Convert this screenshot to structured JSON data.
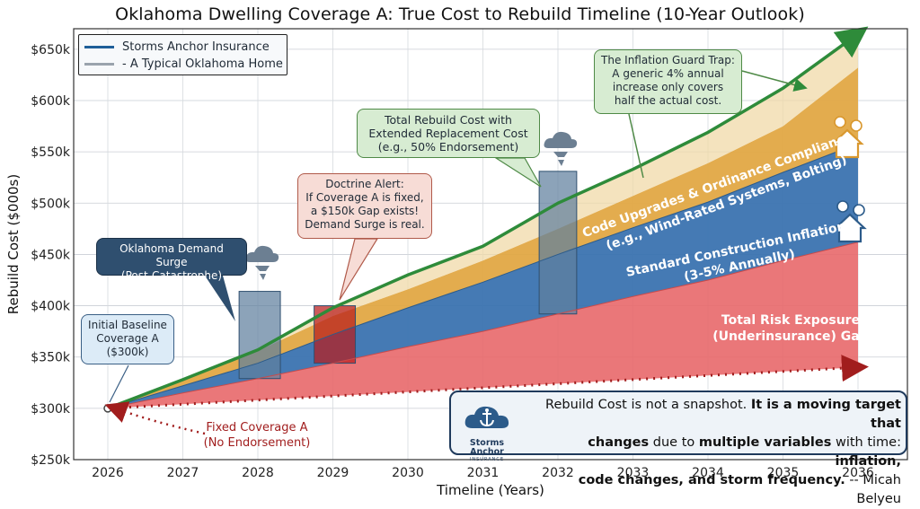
{
  "chart_data": {
    "type": "area",
    "title": "Oklahoma Dwelling Coverage A: True Cost to Rebuild Timeline (10-Year Outlook)",
    "xlabel": "Timeline (Years)",
    "ylabel": "Rebuild Cost ($000s)",
    "x": [
      2026,
      2027,
      2028,
      2029,
      2030,
      2031,
      2032,
      2033,
      2034,
      2035,
      2036
    ],
    "ylim": [
      250,
      670
    ],
    "y_ticks": [
      250,
      300,
      350,
      400,
      450,
      500,
      550,
      600,
      650
    ],
    "y_tick_labels": [
      "$250k",
      "$300k",
      "$350k",
      "$400k",
      "$450k",
      "$500k",
      "$550k",
      "$600k",
      "$650k"
    ],
    "x_tick_labels": [
      "2026",
      "2027",
      "2028",
      "2029",
      "2030",
      "2031",
      "2032",
      "2033",
      "2034",
      "2035",
      "2036"
    ],
    "grid": true,
    "legend_position": "top-left",
    "legend": [
      {
        "label": "Storms Anchor Insurance",
        "color": "#1f5f99"
      },
      {
        "label": "- A Typical Oklahoma Home",
        "color": "#9aa3ad"
      }
    ],
    "series": [
      {
        "name": "Fixed Coverage A",
        "color": "#a11d1d",
        "values": [
          300,
          304,
          308,
          312,
          316,
          320,
          324,
          328,
          332,
          336,
          340
        ]
      },
      {
        "name": "Total Risk Exposure (Underinsurance) Gap",
        "color": "#e8686a",
        "values": [
          300,
          315,
          329,
          344,
          360,
          375,
          392,
          409,
          425,
          444,
          462
        ]
      },
      {
        "name": "Standard Construction Inflation",
        "color": "#3b73b0",
        "values": [
          300,
          322,
          344,
          372,
          398,
          423,
          450,
          476,
          501,
          530,
          558
        ]
      },
      {
        "name": "Code Upgrades & Ordinance Compliance",
        "color": "#e2a845",
        "values": [
          300,
          327,
          356,
          390,
          416,
          444,
          475,
          507,
          539,
          575,
          632
        ]
      },
      {
        "name": "Total Rebuild Cost with Extended Replacement Cost",
        "color": "#2e8b3a",
        "values": [
          300,
          328,
          357,
          398,
          430,
          458,
          500,
          533,
          569,
          612,
          665
        ]
      }
    ],
    "surge_bars": [
      {
        "x_start": 2027.75,
        "x_end": 2028.3,
        "top": 414
      },
      {
        "x_start": 2028.75,
        "x_end": 2029.3,
        "top": 400
      },
      {
        "x_start": 2031.75,
        "x_end": 2032.25,
        "top": 531
      }
    ],
    "annotations": {
      "baseline": "Initial Baseline\nCoverage A\n($300k)",
      "surge": "Oklahoma Demand Surge\n(Post-Catastrophe)",
      "doctrine": "Doctrine Alert:\nIf Coverage A is fixed,\na $150k Gap exists!\nDemand Surge is real.",
      "extended": "Total Rebuild Cost with\nExtended Replacement Cost\n(e.g., 50% Endorsement)",
      "inflation_guard": "The Inflation Guard Trap:\nA generic 4% annual\nincrease only covers\nhalf the actual cost.",
      "fixed": "Fixed Coverage A\n(No Endorsement)",
      "code_band_1": "Code Upgrades & Ordinance Compliance",
      "code_band_2": "(e.g., Wind-Rated Systems, Bolting)",
      "inflation_band_1": "Standard Construction Inflation",
      "inflation_band_2": "(3-5% Annually)",
      "gap_band_1": "Total Risk Exposure",
      "gap_band_2": "(Underinsurance) Gap"
    }
  },
  "quote": {
    "line1_a": "Rebuild Cost is not a snapshot. ",
    "line1_b": "It is a moving target that",
    "line2_a": "changes",
    "line2_b": " due to ",
    "line2_c": "multiple variables",
    "line2_d": " with time: ",
    "line2_e": "inflation,",
    "line3_a": "code changes, and storm frequency.",
    "line3_b": "    -- Micah Belyeu"
  },
  "logo": {
    "name": "Storms Anchor",
    "tagline": "INSURANCE"
  },
  "colors": {
    "red_gap": "#e8686a",
    "blue_inflation": "#3b73b0",
    "orange_code": "#e2a845",
    "green_total": "#2e8b3a",
    "dark_red": "#a11d1d"
  }
}
